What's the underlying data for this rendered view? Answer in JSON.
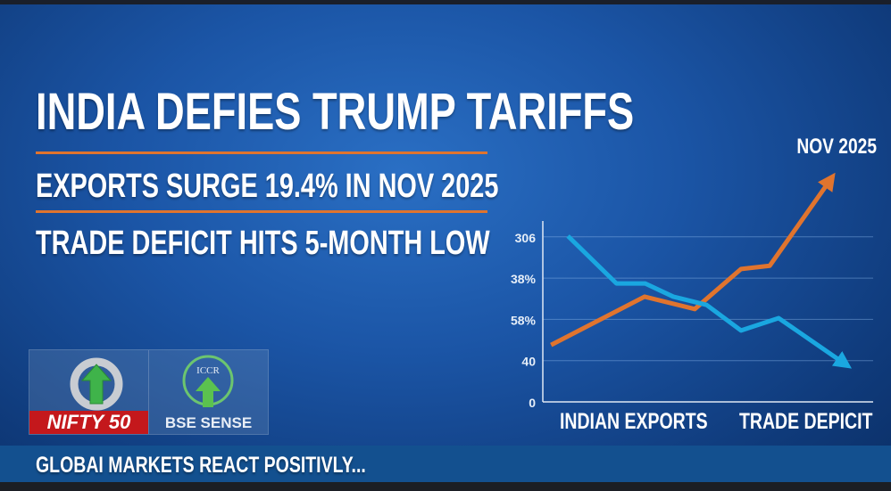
{
  "headline": "INDIA DEFIES TRUMP TARIFFS",
  "subheadlines": [
    "EXPORTS SURGE 19.4% IN NOV 2025",
    "TRADE DEFICIT HITS 5-MONTH LOW"
  ],
  "logos": {
    "nifty": "NIFTY 50",
    "bse": "BSE SENSE",
    "bse_emblem": "ICCR"
  },
  "ticker": "GLOBAI MARKETS REACT POSITIVLY...",
  "colors": {
    "accent": "#e0742e",
    "exports_line": "#e0742e",
    "deficit_line": "#1aa7e0",
    "nifty_red": "#c4181c"
  },
  "chart_data": {
    "type": "line",
    "title": "NOV 2025",
    "xlabels": [
      "INDIAN EXPORTS",
      "TRADE DEPICIT"
    ],
    "ytick_labels": [
      "0",
      "40",
      "58%",
      "38%",
      "306"
    ],
    "yticks": [
      0,
      1,
      2,
      3,
      4
    ],
    "ylim": [
      0,
      5.6
    ],
    "xlim": [
      0,
      100
    ],
    "grid": true,
    "series": [
      {
        "name": "Indian Exports",
        "color": "#e0742e",
        "x": [
          2.5,
          30.8,
          46,
          60,
          68.7,
          87
        ],
        "y": [
          1.38,
          2.55,
          2.25,
          3.22,
          3.3,
          5.38
        ]
      },
      {
        "name": "Trade Deficit",
        "color": "#1aa7e0",
        "x": [
          7.6,
          22.3,
          31,
          39.5,
          49.6,
          60,
          71.4,
          91.3
        ],
        "y": [
          4.02,
          2.87,
          2.87,
          2.55,
          2.35,
          1.73,
          2.03,
          0.93
        ]
      }
    ]
  }
}
